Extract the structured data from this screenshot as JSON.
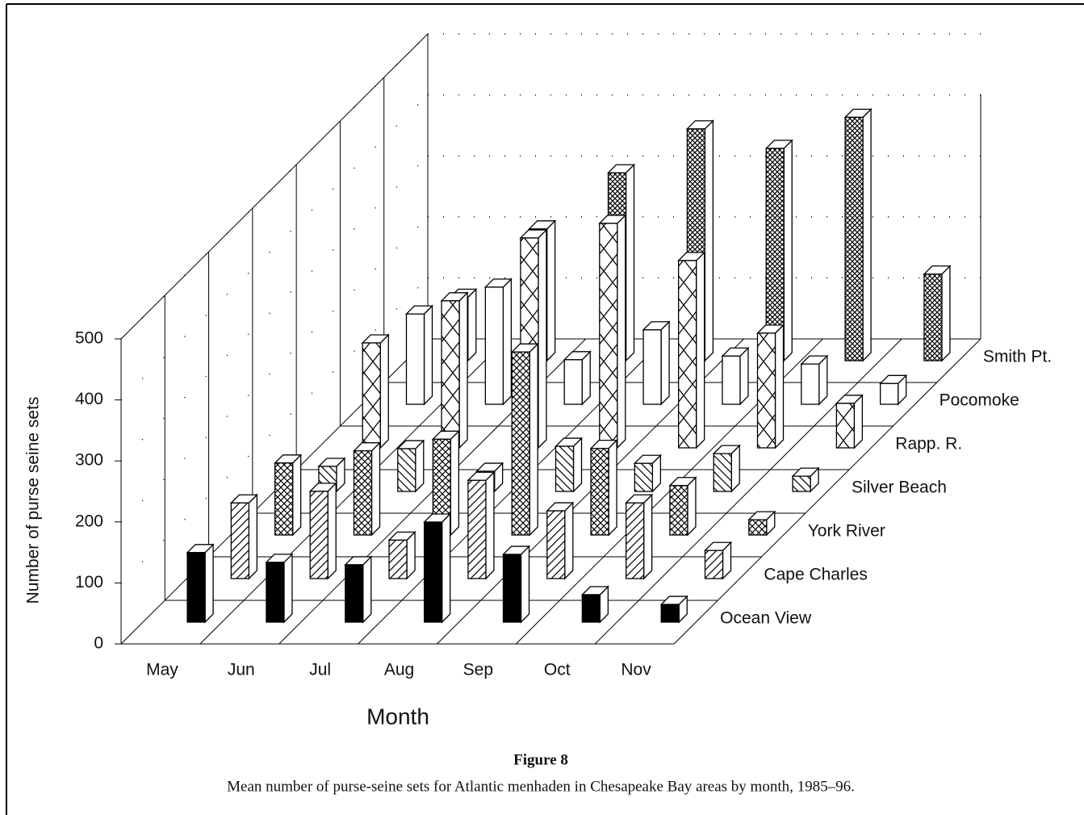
{
  "chart_data": {
    "type": "bar3d",
    "y_label": "Number of purse seine sets",
    "x_label": "Month",
    "figure_label": "Figure 8",
    "caption": "Mean number of purse-seine sets for Atlantic menhaden in Chesapeake Bay areas by month, 1985–96.",
    "categories": [
      "May",
      "Jun",
      "Jul",
      "Aug",
      "Sep",
      "Oct",
      "Nov"
    ],
    "ylim": [
      0,
      500
    ],
    "yticks": [
      0,
      100,
      200,
      300,
      400,
      500
    ],
    "grid": true,
    "series": [
      {
        "name": "Ocean View",
        "color": "#000000",
        "pattern": "solid",
        "values": [
          114,
          98,
          94,
          164,
          111,
          45,
          29
        ]
      },
      {
        "name": "Cape Charles",
        "color": "#000000",
        "pattern": "diagonal-up",
        "values": [
          124,
          143,
          63,
          161,
          111,
          124,
          46
        ]
      },
      {
        "name": "York River",
        "color": "#000000",
        "pattern": "crosshatch-small",
        "values": [
          118,
          138,
          157,
          300,
          142,
          81,
          25
        ]
      },
      {
        "name": "Silver Beach",
        "color": "#000000",
        "pattern": "diagonal-down",
        "values": [
          41,
          70,
          33,
          74,
          46,
          62,
          25
        ]
      },
      {
        "name": "Rapp. R.",
        "color": "#000000",
        "pattern": "crosshatch-large",
        "values": [
          172,
          241,
          344,
          368,
          307,
          188,
          73
        ]
      },
      {
        "name": "Pocomoke",
        "color": "#000000",
        "pattern": "none",
        "values": [
          148,
          192,
          73,
          122,
          79,
          66,
          34
        ]
      },
      {
        "name": "Smith Pt.",
        "color": "#000000",
        "pattern": "crosshatch-dense",
        "values": [
          104,
          216,
          308,
          380,
          348,
          399,
          142
        ]
      }
    ]
  }
}
